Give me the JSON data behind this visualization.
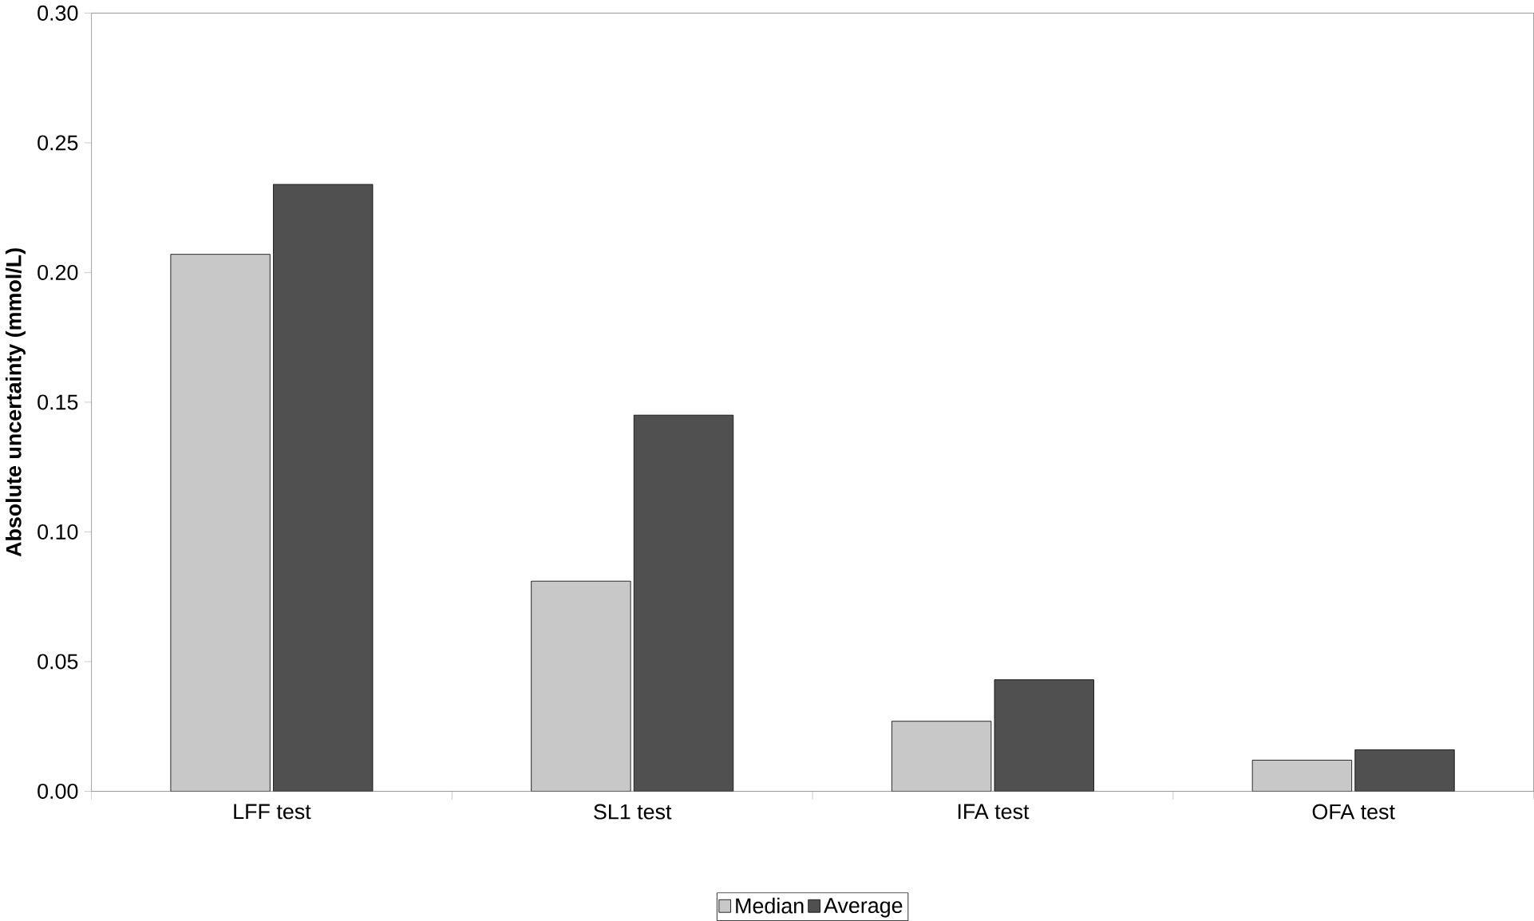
{
  "chart_data": {
    "type": "bar",
    "ylabel": "Absolute uncertainty (mmol/L)",
    "categories": [
      "LFF test",
      "SL1 test",
      "IFA test",
      "OFA test"
    ],
    "series": [
      {
        "name": "Median",
        "color": "#c8c8c8",
        "values": [
          0.207,
          0.081,
          0.027,
          0.012
        ]
      },
      {
        "name": "Average",
        "color": "#505050",
        "values": [
          0.234,
          0.145,
          0.043,
          0.016
        ]
      }
    ],
    "ylim": [
      0,
      0.3
    ],
    "yticks": [
      {
        "value": 0,
        "label": "0.00"
      },
      {
        "value": 0.05,
        "label": "0.05"
      },
      {
        "value": 0.1,
        "label": "0.10"
      },
      {
        "value": 0.15,
        "label": "0.15"
      },
      {
        "value": 0.2,
        "label": "0.20"
      },
      {
        "value": 0.25,
        "label": "0.25"
      },
      {
        "value": 0.3,
        "label": "0.30"
      }
    ],
    "grid": false,
    "legend": "bottom"
  }
}
